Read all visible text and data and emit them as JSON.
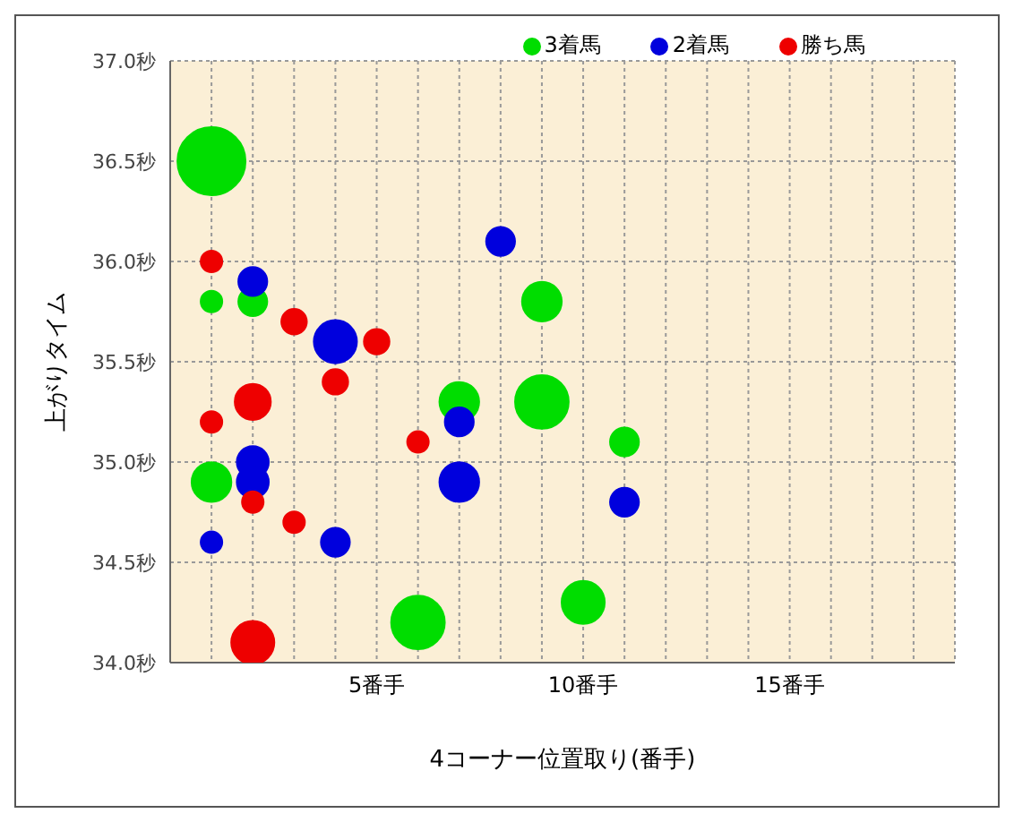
{
  "chart_data": {
    "type": "bubble",
    "xlabel": "4コーナー位置取り(番手)",
    "ylabel": "上がりタイム",
    "xlim": [
      0,
      19
    ],
    "xticks": [
      {
        "value": 1,
        "label": null
      },
      {
        "value": 2,
        "label": null
      },
      {
        "value": 3,
        "label": null
      },
      {
        "value": 4,
        "label": null
      },
      {
        "value": 5,
        "label": "5番手"
      },
      {
        "value": 6,
        "label": null
      },
      {
        "value": 7,
        "label": null
      },
      {
        "value": 8,
        "label": null
      },
      {
        "value": 9,
        "label": null
      },
      {
        "value": 10,
        "label": "10番手"
      },
      {
        "value": 11,
        "label": null
      },
      {
        "value": 12,
        "label": null
      },
      {
        "value": 13,
        "label": null
      },
      {
        "value": 14,
        "label": null
      },
      {
        "value": 15,
        "label": "15番手"
      },
      {
        "value": 16,
        "label": null
      },
      {
        "value": 17,
        "label": null
      },
      {
        "value": 18,
        "label": null
      }
    ],
    "ylim": [
      34,
      37
    ],
    "yticks": [
      {
        "value": 34,
        "label": "34.0秒"
      },
      {
        "value": 34.5,
        "label": "34.5秒"
      },
      {
        "value": 35,
        "label": "35.0秒"
      },
      {
        "value": 35.5,
        "label": "35.5秒"
      },
      {
        "value": 36,
        "label": "36.0秒"
      },
      {
        "value": 36.5,
        "label": "36.5秒"
      },
      {
        "value": 37,
        "label": "37.0秒"
      }
    ],
    "grid": true,
    "legend": "top right",
    "marker": "circle",
    "series": [
      {
        "name": "3着馬",
        "color": "#00dd00",
        "x": [
          1,
          1,
          2,
          9,
          7,
          9,
          11,
          1,
          6,
          10
        ],
        "values": [
          36.5,
          35.8,
          35.8,
          35.8,
          35.3,
          35.3,
          35.1,
          34.9,
          34.2,
          34.3
        ],
        "sizes": [
          1,
          0.1,
          0.18,
          0.34,
          0.34,
          0.62,
          0.18,
          0.34,
          0.62,
          0.4
        ]
      },
      {
        "name": "2着馬",
        "color": "#0000dd",
        "x": [
          8,
          2,
          4,
          7,
          2,
          2,
          7,
          11,
          1,
          4
        ],
        "values": [
          36.1,
          35.9,
          35.6,
          35.2,
          35,
          34.9,
          34.9,
          34.8,
          34.6,
          34.6
        ],
        "sizes": [
          0.18,
          0.18,
          0.4,
          0.18,
          0.22,
          0.22,
          0.34,
          0.18,
          0.1,
          0.18
        ]
      },
      {
        "name": "勝ち馬",
        "color": "#ee0000",
        "x": [
          1,
          3,
          5,
          4,
          2,
          1,
          6,
          2,
          3,
          2
        ],
        "values": [
          36,
          35.7,
          35.6,
          35.4,
          35.3,
          35.2,
          35.1,
          34.8,
          34.7,
          34.1
        ],
        "sizes": [
          0.1,
          0.14,
          0.14,
          0.14,
          0.28,
          0.1,
          0.1,
          0.1,
          0.1,
          0.4
        ]
      }
    ]
  }
}
